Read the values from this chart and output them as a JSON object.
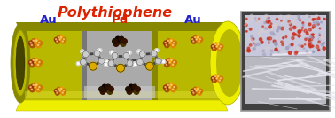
{
  "title": "Polythiophene",
  "title_color": "#dd2200",
  "title_fontsize": 11.5,
  "label_Au": "Au",
  "label_Pd": "Pd",
  "label_Au_color": "#2222cc",
  "label_Pd_color": "#dd2200",
  "label_fontsize": 9.5,
  "tube_yellow_top": "#d4d400",
  "tube_yellow_face": "#b8b800",
  "tube_yellow_dark": "#888800",
  "tube_yellow_bright": "#eeee00",
  "tube_gray_face": "#aaaaaa",
  "tube_gray_dark": "#777777",
  "tube_gray_light": "#cccccc",
  "bg_color": "#ffffff",
  "au_np_colors": [
    "#cc7700",
    "#aa5500",
    "#dd8800",
    "#bb6600",
    "#ee9900",
    "#993300"
  ],
  "pd_np_colors": [
    "#221100",
    "#331100",
    "#443300",
    "#110000",
    "#221100"
  ],
  "sem_outer_bg": "#404040",
  "sem_fiber_bg": "#b0b0b8",
  "sem_fiber_color": "#e8e8f0",
  "sem_dot_region_bg": "#c0c0d8",
  "sem_dot_red": "#cc3322",
  "sem_dot_blue": "#9999bb",
  "sem_border": "#999999"
}
